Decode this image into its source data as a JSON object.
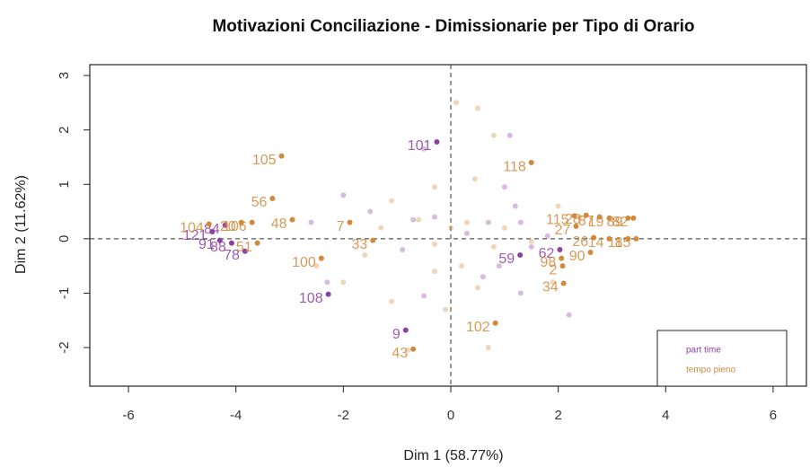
{
  "chart_data": {
    "type": "scatter",
    "title": "Motivazioni Conciliazione - Dimissionarie per Tipo di Orario",
    "x_label": "Dim 1 (58.77%)",
    "y_label": "Dim 2 (11.62%)",
    "xlim": [
      -6.72,
      6.62
    ],
    "ylim": [
      -2.71,
      3.2
    ],
    "xticks": [
      -6,
      -4,
      -2,
      0,
      2,
      4,
      6
    ],
    "yticks": [
      -2,
      -1,
      0,
      1,
      2,
      3
    ],
    "legend_position": "bottom-right",
    "series": [
      {
        "name": "part time",
        "color": "#8e3fa3",
        "x": [
          -0.26,
          -4.2,
          -4.44,
          -4.3,
          -4.08,
          -3.83,
          -2.28,
          -0.84,
          1.29,
          2.03,
          -0.5,
          1.1,
          -2.0,
          -1.5,
          -0.7,
          -0.3,
          0.3,
          0.7,
          1.2,
          1.0,
          1.8,
          1.5,
          0.9,
          0.6,
          1.3,
          -2.3,
          -0.5,
          2.2,
          -0.9,
          -2.6,
          1.3
        ],
        "values": [
          1.78,
          0.25,
          0.13,
          -0.03,
          -0.08,
          -0.23,
          -1.02,
          -1.68,
          -0.3,
          -0.2,
          1.65,
          1.9,
          0.8,
          0.5,
          0.35,
          0.4,
          0.1,
          0.3,
          0.6,
          0.95,
          0.05,
          -0.15,
          -0.5,
          -0.7,
          -1.0,
          -0.8,
          -1.05,
          -1.4,
          -0.2,
          0.3,
          0.3
        ],
        "labels": [
          "101",
          "84",
          "121",
          "91",
          "88",
          "78",
          "108",
          "9",
          "59",
          "62",
          null,
          null,
          null,
          null,
          null,
          null,
          null,
          null,
          null,
          null,
          null,
          null,
          null,
          null,
          null,
          null,
          null,
          null,
          null,
          null,
          null
        ]
      },
      {
        "name": "tempo pieno",
        "color": "#d08a3c",
        "x": [
          -3.15,
          -3.32,
          -1.88,
          -2.95,
          -4.5,
          -3.9,
          -3.7,
          -3.6,
          -2.41,
          -1.45,
          1.5,
          2.3,
          2.52,
          2.77,
          2.95,
          2.33,
          2.66,
          2.95,
          3.3,
          3.4,
          3.3,
          3.45,
          2.08,
          2.06,
          2.1,
          2.6,
          -0.7,
          0.83,
          0.1,
          0.5,
          0.8,
          0.45,
          -0.3,
          -1.1,
          -0.6,
          0.3,
          1.0,
          0.8,
          -0.3,
          0.2,
          -0.3,
          0.5,
          -0.1,
          -1.1,
          0.7,
          -0.8,
          -2.0,
          -2.5,
          2.0,
          1.9,
          1.5,
          2.4,
          -1.3,
          0.0,
          -1.6
        ],
        "values": [
          1.52,
          0.74,
          0.3,
          0.35,
          0.27,
          0.3,
          0.3,
          -0.08,
          -0.36,
          -0.03,
          1.4,
          0.42,
          0.43,
          0.4,
          0.38,
          0.23,
          0.02,
          0.0,
          0.38,
          0.38,
          0.0,
          0.0,
          -0.5,
          -0.36,
          -0.82,
          -0.25,
          -2.03,
          -1.55,
          2.5,
          2.4,
          1.9,
          1.1,
          0.95,
          0.7,
          0.35,
          0.3,
          0.2,
          -0.15,
          -0.1,
          -0.5,
          -0.6,
          -0.9,
          -1.3,
          -1.15,
          -2.0,
          -2.05,
          -0.8,
          -0.5,
          0.6,
          -0.8,
          -0.05,
          0.4,
          0.2,
          0.2,
          -0.3
        ],
        "labels": [
          "105",
          "56",
          "7",
          "48",
          "104",
          "20",
          "106",
          "51",
          "100",
          "33",
          "118",
          "115",
          "28",
          "87",
          "19",
          "27",
          "26",
          "14",
          "89",
          "82",
          "11",
          "85",
          "2",
          "98",
          "34",
          "90",
          "43",
          "102",
          null,
          null,
          null,
          null,
          null,
          null,
          null,
          null,
          null,
          null,
          null,
          null,
          null,
          null,
          null,
          null,
          null,
          null,
          null,
          null,
          null,
          null,
          null,
          null,
          null,
          null,
          null
        ]
      }
    ]
  }
}
